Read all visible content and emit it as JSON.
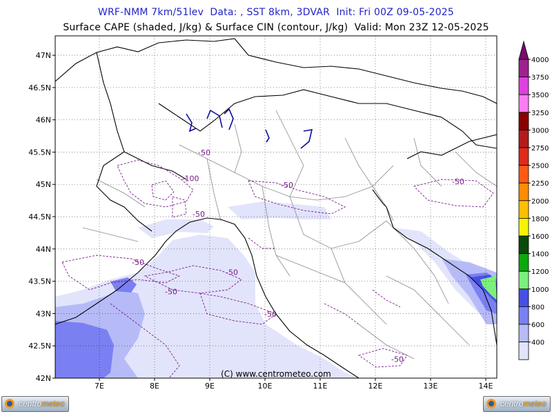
{
  "header": {
    "title_line1": "WRF-NMM 7km/51lev  Data: , SST 8km, 3DVAR  Init: Fri 00Z 09-05-2025",
    "title_line2": "Surface CAPE (shaded, J/kg) & Surface CIN (contour, J/kg)  Valid: Mon 23Z 12-05-2025"
  },
  "map": {
    "lon_ticks": [
      "7E",
      "8E",
      "9E",
      "10E",
      "11E",
      "12E",
      "13E",
      "14E"
    ],
    "lat_ticks": [
      "47N",
      "46.5N",
      "46N",
      "45.5N",
      "45N",
      "44.5N",
      "44N",
      "43.5N",
      "43N",
      "42.5N",
      "42N"
    ],
    "lon_range": [
      6.2,
      14.2
    ],
    "lat_range": [
      42,
      47.3
    ],
    "credit": "(C) www.centrometeo.com",
    "cin_labels": [
      {
        "text": "-50",
        "lon": 8.9,
        "lat": 45.45
      },
      {
        "text": "-100",
        "lon": 8.65,
        "lat": 45.05
      },
      {
        "text": "-50",
        "lon": 10.4,
        "lat": 44.95
      },
      {
        "text": "-50",
        "lon": 8.8,
        "lat": 44.5
      },
      {
        "text": "-50",
        "lon": 13.5,
        "lat": 45.0
      },
      {
        "text": "-50",
        "lon": 7.7,
        "lat": 43.75
      },
      {
        "text": "-50",
        "lon": 9.4,
        "lat": 43.6
      },
      {
        "text": "-50",
        "lon": 8.3,
        "lat": 43.3
      },
      {
        "text": "-50",
        "lon": 10.1,
        "lat": 42.95
      },
      {
        "text": "-50",
        "lon": 12.4,
        "lat": 42.25
      }
    ]
  },
  "legend": {
    "levels": [
      {
        "value": "4000",
        "color": "#a0208f"
      },
      {
        "value": "3750",
        "color": "#e040e0"
      },
      {
        "value": "3500",
        "color": "#f97cf0"
      },
      {
        "value": "3250",
        "color": "#8b0000"
      },
      {
        "value": "3000",
        "color": "#b51b1b"
      },
      {
        "value": "2750",
        "color": "#e02a1a"
      },
      {
        "value": "2500",
        "color": "#ff5a14"
      },
      {
        "value": "2250",
        "color": "#ff8c00"
      },
      {
        "value": "2000",
        "color": "#ffbf00"
      },
      {
        "value": "1800",
        "color": "#f5f500"
      },
      {
        "value": "1600",
        "color": "#0a4a0a"
      },
      {
        "value": "1400",
        "color": "#0ca80c"
      },
      {
        "value": "1200",
        "color": "#7cf07c"
      },
      {
        "value": "1000",
        "color": "#4650e6"
      },
      {
        "value": "800",
        "color": "#7a80f2"
      },
      {
        "value": "600",
        "color": "#b6bbf8"
      },
      {
        "value": "400",
        "color": "#e2e4fb"
      }
    ],
    "top_color": "#7a0a6e"
  },
  "logos": {
    "left": {
      "part1": "centro",
      "part2": "meteo"
    },
    "right": {
      "part1": "centro",
      "part2": "meteo"
    }
  },
  "colors": {
    "title": "#2323c8",
    "coast": "#000000",
    "borders": "#888888",
    "cin": "#7a1a8c",
    "lakes": "#0a0aa0"
  }
}
